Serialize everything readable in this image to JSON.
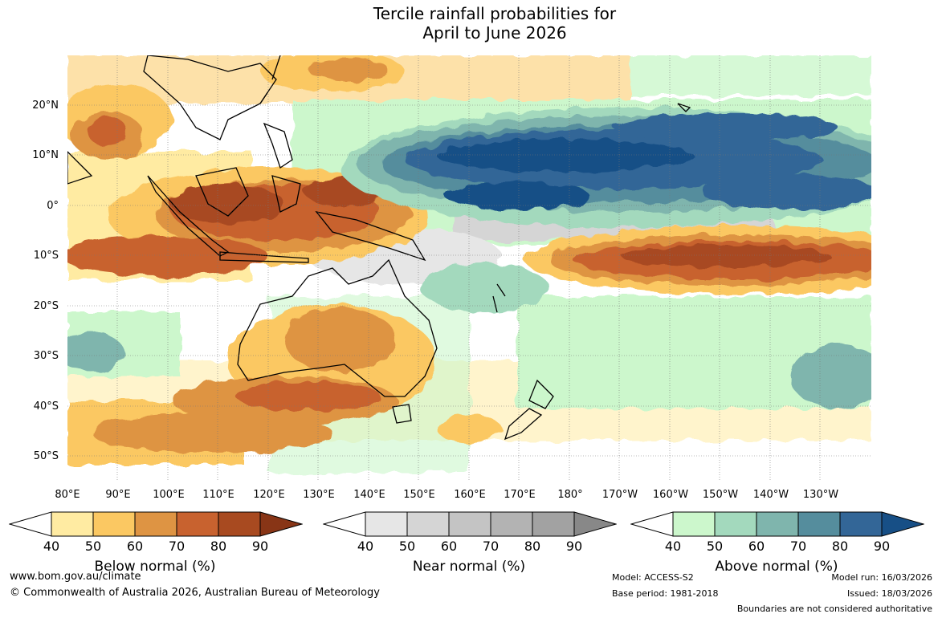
{
  "title": {
    "line1": "Tercile rainfall probabilities for",
    "line2": "April to June 2026"
  },
  "map": {
    "lat_labels": [
      "20°N",
      "10°N",
      "0°",
      "10°S",
      "20°S",
      "30°S",
      "40°S",
      "50°S"
    ],
    "lon_labels": [
      "80°E",
      "90°E",
      "100°E",
      "110°E",
      "120°E",
      "130°E",
      "140°E",
      "150°E",
      "160°E",
      "170°E",
      "180°",
      "170°W",
      "160°W",
      "150°W",
      "140°W",
      "130°W"
    ]
  },
  "legends": [
    {
      "title": "Below normal (%)",
      "ticks": [
        "40",
        "50",
        "60",
        "70",
        "80",
        "90"
      ],
      "colors": [
        "#ffeba2",
        "#fbc862",
        "#de9443",
        "#c8622f",
        "#a84a20",
        "#883516"
      ]
    },
    {
      "title": "Near normal (%)",
      "ticks": [
        "40",
        "50",
        "60",
        "70",
        "80",
        "90"
      ],
      "colors": [
        "#e6e6e6",
        "#d5d5d5",
        "#c4c4c4",
        "#b3b3b3",
        "#a2a2a2",
        "#888888"
      ]
    },
    {
      "title": "Above normal (%)",
      "ticks": [
        "40",
        "50",
        "60",
        "70",
        "80",
        "90"
      ],
      "colors": [
        "#ccf7cc",
        "#a3d9bd",
        "#7fb5ad",
        "#558d9d",
        "#336697",
        "#174f86"
      ]
    }
  ],
  "footer": {
    "website": "www.bom.gov.au/climate",
    "copyright": "© Commonwealth of Australia 2026, Australian Bureau of Meteorology",
    "model": "Model: ACCESS-S2",
    "base_period": "Base period: 1981-2018",
    "model_run": "Model run: 16/03/2026",
    "issued": "Issued: 18/03/2026",
    "disclaimer": "Boundaries are not considered authoritative"
  }
}
